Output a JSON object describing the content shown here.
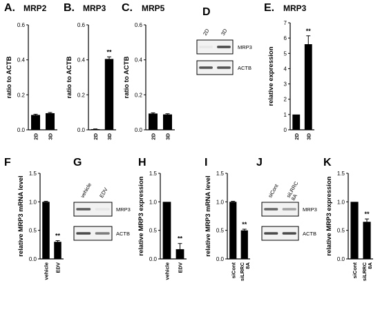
{
  "colors": {
    "bar": "#000000",
    "axis": "#000000",
    "blot_band": "#2b2b2b",
    "blot_bg": "#f2f2f2"
  },
  "chart_data": [
    {
      "id": "A",
      "letter": "A.",
      "title": "MRP2",
      "type": "bar",
      "ylabel": "ratio to ACTB",
      "ylim": [
        0,
        0.6
      ],
      "yticks": [
        "0.0",
        "0.2",
        "0.4",
        "0.6"
      ],
      "categories": [
        "2D",
        "3D"
      ],
      "values": [
        0.085,
        0.095
      ],
      "errors": [
        0.004,
        0.004
      ],
      "annotations": [
        "",
        ""
      ]
    },
    {
      "id": "B",
      "letter": "B.",
      "title": "MRP3",
      "type": "bar",
      "ylabel": "ratio to ACTB",
      "ylim": [
        0,
        0.6
      ],
      "yticks": [
        "0.0",
        "0.2",
        "0.4",
        "0.6"
      ],
      "categories": [
        "2D",
        "3D"
      ],
      "values": [
        0.004,
        0.405
      ],
      "errors": [
        0.001,
        0.012
      ],
      "annotations": [
        "",
        "**"
      ]
    },
    {
      "id": "C",
      "letter": "C.",
      "title": "MRP5",
      "type": "bar",
      "ylabel": "ratio to ACTB",
      "ylim": [
        0,
        0.6
      ],
      "yticks": [
        "0.0",
        "0.2",
        "0.4",
        "0.6"
      ],
      "categories": [
        "2D",
        "3D"
      ],
      "values": [
        0.093,
        0.088
      ],
      "errors": [
        0.004,
        0.004
      ],
      "annotations": [
        "",
        ""
      ]
    },
    {
      "id": "E",
      "letter": "E.",
      "title": "MRP3",
      "type": "bar",
      "ylabel": "relative expression",
      "ylim": [
        0,
        7
      ],
      "yticks": [
        "0",
        "1",
        "2",
        "3",
        "4",
        "5",
        "6",
        "7"
      ],
      "categories": [
        "2D",
        "3D"
      ],
      "values": [
        1.0,
        5.6
      ],
      "errors": [
        0,
        0.55
      ],
      "annotations": [
        "",
        "**"
      ]
    },
    {
      "id": "F",
      "letter": "F",
      "title": "",
      "type": "bar",
      "ylabel": "relative MRP3 mRNA level",
      "ylim": [
        0,
        1.5
      ],
      "yticks": [
        "0.0",
        "0.5",
        "1.0",
        "1.5"
      ],
      "categories": [
        "vehicle",
        "EDV"
      ],
      "values": [
        1.0,
        0.3
      ],
      "errors": [
        0.01,
        0.02
      ],
      "annotations": [
        "",
        "**"
      ]
    },
    {
      "id": "H",
      "letter": "H",
      "title": "",
      "type": "bar",
      "ylabel": "relative MRP3 expression",
      "ylim": [
        0,
        1.5
      ],
      "yticks": [
        "0.0",
        "0.5",
        "1.0",
        "1.5"
      ],
      "categories": [
        "vehicle",
        "EDV"
      ],
      "values": [
        1.0,
        0.17
      ],
      "errors": [
        0,
        0.1
      ],
      "annotations": [
        "",
        "**"
      ]
    },
    {
      "id": "I",
      "letter": "I",
      "title": "",
      "type": "bar",
      "ylabel": "relative MRP3 mRNA level",
      "ylim": [
        0,
        1.5
      ],
      "yticks": [
        "0.0",
        "0.5",
        "1.0",
        "1.5"
      ],
      "categories": [
        "siCont",
        "siLRRC\n8A"
      ],
      "values": [
        1.0,
        0.5
      ],
      "errors": [
        0.01,
        0.02
      ],
      "annotations": [
        "",
        "**"
      ]
    },
    {
      "id": "K",
      "letter": "K",
      "title": "",
      "type": "bar",
      "ylabel": "relative MRP3 expression",
      "ylim": [
        0,
        1.5
      ],
      "yticks": [
        "0.0",
        "0.5",
        "1.0",
        "1.5"
      ],
      "categories": [
        "siCont",
        "siLRRC\n8A"
      ],
      "values": [
        1.0,
        0.65
      ],
      "errors": [
        0,
        0.05
      ],
      "annotations": [
        "",
        "**"
      ]
    }
  ],
  "blots": [
    {
      "id": "D",
      "letter": "D",
      "columns": [
        "2D",
        "3D"
      ],
      "rows": [
        {
          "label": "MRP3",
          "intensity": [
            0.05,
            0.85
          ]
        },
        {
          "label": "ACTB",
          "intensity": [
            0.8,
            0.8
          ]
        }
      ]
    },
    {
      "id": "G",
      "letter": "G",
      "columns": [
        "vehicle",
        "EDV"
      ],
      "rows": [
        {
          "label": "MRP3",
          "intensity": [
            0.75,
            0.05
          ]
        },
        {
          "label": "ACTB",
          "intensity": [
            0.85,
            0.6
          ]
        }
      ]
    },
    {
      "id": "J",
      "letter": "J",
      "columns": [
        "siCont",
        "siLRRC\n8A"
      ],
      "rows": [
        {
          "label": "MRP3",
          "intensity": [
            0.7,
            0.4
          ]
        },
        {
          "label": "ACTB",
          "intensity": [
            0.85,
            0.85
          ]
        }
      ]
    }
  ]
}
